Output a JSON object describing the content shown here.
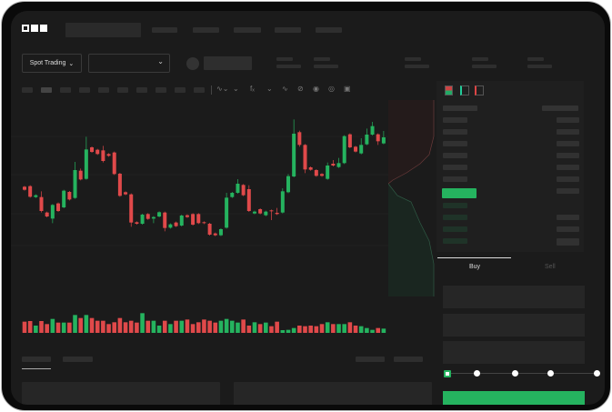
{
  "header": {
    "logo": "OKX"
  },
  "market": {
    "mode_label": "Spot Trading",
    "chevron": "chevron-down-icon"
  },
  "order_form": {
    "tabs": [
      {
        "label": "Buy",
        "active": true
      },
      {
        "label": "Sell",
        "active": false
      }
    ],
    "leverage_slider_value": 0
  },
  "colors": {
    "up": "#25b35f",
    "down": "#e0494a",
    "background": "#1b1b1b"
  },
  "chart_data": {
    "type": "candlestick",
    "grid": true,
    "candles": [
      [
        200,
        190,
        203,
        187
      ],
      [
        202,
        167,
        205,
        164
      ],
      [
        166,
        172,
        175,
        163
      ],
      [
        166,
        120,
        185,
        115
      ],
      [
        115,
        102,
        118,
        99
      ],
      [
        95,
        140,
        143,
        80
      ],
      [
        145,
        120,
        148,
        117
      ],
      [
        132,
        187,
        190,
        129
      ],
      [
        183,
        158,
        186,
        155
      ],
      [
        163,
        255,
        282,
        160
      ],
      [
        253,
        224,
        260,
        221
      ],
      [
        226,
        323,
        365,
        223
      ],
      [
        330,
        315,
        333,
        312
      ],
      [
        322,
        308,
        325,
        305
      ],
      [
        320,
        285,
        335,
        280
      ],
      [
        308,
        302,
        311,
        299
      ],
      [
        313,
        242,
        316,
        239
      ],
      [
        243,
        170,
        246,
        167
      ],
      [
        182,
        175,
        185,
        172
      ],
      [
        175,
        82,
        178,
        68
      ],
      [
        83,
        78,
        86,
        75
      ],
      [
        78,
        108,
        111,
        75
      ],
      [
        110,
        94,
        113,
        91
      ],
      [
        95,
        100,
        103,
        80
      ],
      [
        102,
        116,
        119,
        99
      ],
      [
        115,
        64,
        118,
        53
      ],
      [
        65,
        76,
        79,
        62
      ],
      [
        82,
        70,
        85,
        67
      ],
      [
        72,
        105,
        108,
        69
      ],
      [
        106,
        100,
        109,
        97
      ],
      [
        110,
        75,
        113,
        72
      ],
      [
        110,
        80,
        113,
        77
      ],
      [
        83,
        80,
        86,
        77
      ],
      [
        78,
        42,
        81,
        39
      ],
      [
        46,
        40,
        49,
        37
      ],
      [
        40,
        60,
        63,
        37
      ],
      [
        65,
        164,
        180,
        62
      ],
      [
        166,
        180,
        183,
        163
      ],
      [
        180,
        210,
        225,
        177
      ],
      [
        206,
        172,
        209,
        169
      ],
      [
        192,
        120,
        205,
        117
      ],
      [
        112,
        118,
        121,
        109
      ],
      [
        126,
        112,
        129,
        109
      ],
      [
        106,
        118,
        121,
        103
      ],
      [
        122,
        120,
        125,
        90
      ],
      [
        114,
        110,
        130,
        107
      ],
      [
        115,
        185,
        195,
        112
      ],
      [
        182,
        235,
        242,
        179
      ],
      [
        234,
        375,
        422,
        231
      ],
      [
        380,
        338,
        385,
        332
      ],
      [
        338,
        257,
        341,
        245
      ],
      [
        264,
        256,
        267,
        253
      ],
      [
        255,
        236,
        258,
        233
      ],
      [
        242,
        236,
        245,
        233
      ],
      [
        226,
        270,
        280,
        223
      ],
      [
        276,
        270,
        288,
        267
      ],
      [
        265,
        278,
        295,
        262
      ],
      [
        278,
        367,
        370,
        275
      ],
      [
        373,
        330,
        376,
        327
      ],
      [
        332,
        316,
        335,
        313
      ],
      [
        310,
        338,
        360,
        307
      ],
      [
        340,
        372,
        392,
        337
      ],
      [
        372,
        400,
        414,
        369
      ],
      [
        373,
        350,
        376,
        338
      ],
      [
        343,
        363,
        384,
        340
      ]
    ],
    "volume": [
      37,
      39,
      24,
      39,
      29,
      46,
      34,
      34,
      34,
      59,
      49,
      59,
      49,
      40,
      40,
      29,
      35,
      49,
      35,
      40,
      34,
      65,
      40,
      40,
      24,
      40,
      29,
      40,
      40,
      44,
      29,
      35,
      44,
      40,
      34,
      40,
      46,
      40,
      34,
      44,
      24,
      35,
      29,
      34,
      22,
      37,
      9,
      10,
      16,
      24,
      22,
      24,
      22,
      29,
      35,
      29,
      29,
      29,
      35,
      24,
      22,
      16,
      10,
      16,
      14
    ]
  }
}
